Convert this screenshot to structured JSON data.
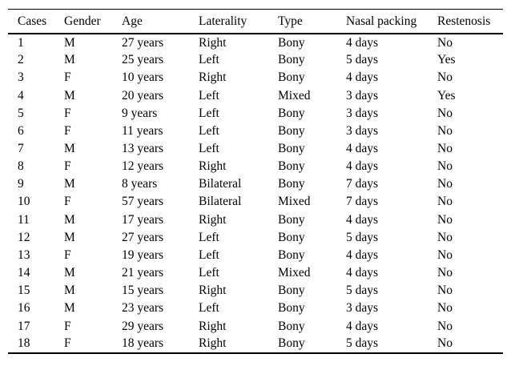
{
  "table": {
    "columns": [
      "Cases",
      "Gender",
      "Age",
      "Laterality",
      "Type",
      "Nasal packing",
      "Restenosis"
    ],
    "rows": [
      [
        "1",
        "M",
        "27 years",
        "Right",
        "Bony",
        "4 days",
        "No"
      ],
      [
        "2",
        "M",
        "25 years",
        "Left",
        "Bony",
        "5 days",
        "Yes"
      ],
      [
        "3",
        "F",
        "10 years",
        "Right",
        "Bony",
        "4 days",
        "No"
      ],
      [
        "4",
        "M",
        "20 years",
        "Left",
        "Mixed",
        "3 days",
        "Yes"
      ],
      [
        "5",
        "F",
        "9 years",
        "Left",
        "Bony",
        "3 days",
        "No"
      ],
      [
        "6",
        "F",
        "11 years",
        "Left",
        "Bony",
        "3 days",
        "No"
      ],
      [
        "7",
        "M",
        "13 years",
        "Left",
        "Bony",
        "4 days",
        "No"
      ],
      [
        "8",
        "F",
        "12 years",
        "Right",
        "Bony",
        "4 days",
        "No"
      ],
      [
        "9",
        "M",
        "8 years",
        "Bilateral",
        "Bony",
        "7 days",
        "No"
      ],
      [
        "10",
        "F",
        "57 years",
        "Bilateral",
        "Mixed",
        "7 days",
        "No"
      ],
      [
        "11",
        "M",
        "17 years",
        "Right",
        "Bony",
        "4 days",
        "No"
      ],
      [
        "12",
        "M",
        "27 years",
        "Left",
        "Bony",
        "5 days",
        "No"
      ],
      [
        "13",
        "F",
        "19 years",
        "Left",
        "Bony",
        "4 days",
        "No"
      ],
      [
        "14",
        "M",
        "21 years",
        "Left",
        "Mixed",
        "4 days",
        "No"
      ],
      [
        "15",
        "M",
        "15 years",
        "Right",
        "Bony",
        "5 days",
        "No"
      ],
      [
        "16",
        "M",
        "23 years",
        "Left",
        "Bony",
        "3 days",
        "No"
      ],
      [
        "17",
        "F",
        "29 years",
        "Right",
        "Bony",
        "4 days",
        "No"
      ],
      [
        "18",
        "F",
        "18 years",
        "Right",
        "Bony",
        "5 days",
        "No"
      ]
    ],
    "colors": {
      "text": "#000000",
      "background": "#ffffff",
      "border": "#000000"
    }
  }
}
